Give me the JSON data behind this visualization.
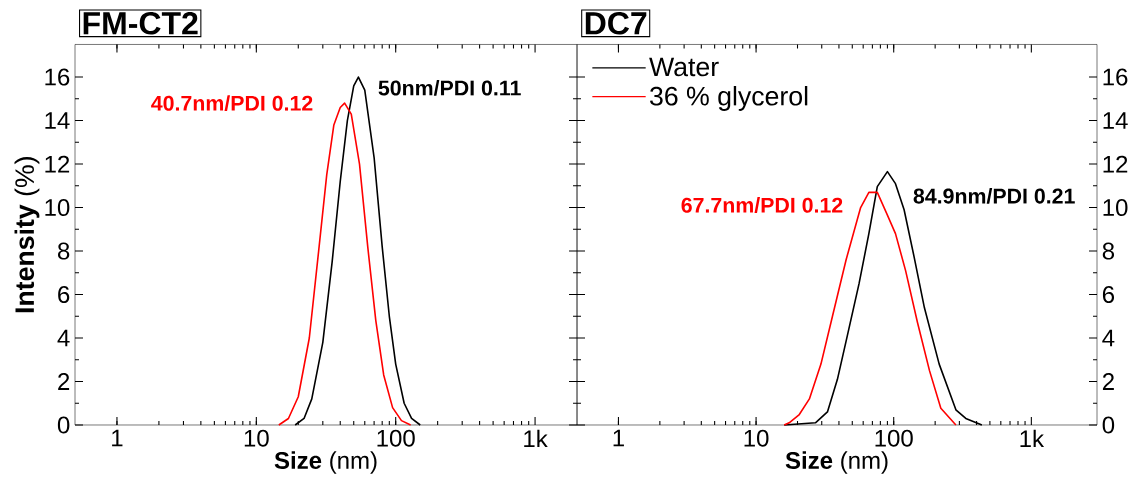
{
  "chart_data": [
    {
      "type": "line",
      "title": "FM-CT2",
      "xlabel": "**Size** (nm)",
      "ylabel": "**Intensity** (%)",
      "log": "x",
      "marker": "none",
      "xlim": [
        0.5,
        2000
      ],
      "ylim": [
        0,
        17.5
      ],
      "xticks": [
        1,
        10,
        100,
        {
          "value": 1000,
          "label": "1k"
        }
      ],
      "yticks": [
        0,
        2,
        4,
        6,
        8,
        10,
        12,
        14,
        16
      ],
      "series": [
        {
          "color": "#000000",
          "x": [
            19,
            22,
            25,
            30,
            35,
            40,
            45,
            50,
            54,
            60,
            70,
            80,
            90,
            100,
            115,
            130,
            150
          ],
          "values": [
            0,
            0.3,
            1.2,
            3.8,
            7.5,
            11.2,
            14.0,
            15.6,
            16.0,
            15.4,
            12.3,
            8.2,
            5.0,
            2.8,
            1.0,
            0.3,
            0
          ]
        },
        {
          "color": "#ff0000",
          "x": [
            14.5,
            17,
            20,
            24,
            28,
            32,
            36,
            40,
            43,
            48,
            55,
            63,
            72,
            82,
            95,
            110,
            128
          ],
          "values": [
            0,
            0.3,
            1.3,
            4.0,
            8.0,
            11.5,
            13.8,
            14.6,
            14.8,
            14.3,
            12.0,
            8.2,
            4.8,
            2.3,
            0.8,
            0.2,
            0
          ]
        }
      ],
      "annotations": [
        "50nm/PDI 0.11",
        "40.7nm/PDI 0.12"
      ]
    },
    {
      "type": "line",
      "title": "DC7",
      "xlabel": "**Size** (nm)",
      "log": "x",
      "marker": "none",
      "legend": "top left",
      "xlim": [
        0.5,
        3000
      ],
      "ylim": [
        0,
        17.5
      ],
      "xticks": [
        1,
        10,
        100,
        {
          "value": 1000,
          "label": "1k"
        }
      ],
      "yticks": [
        0,
        2,
        4,
        6,
        8,
        10,
        12,
        14,
        16
      ],
      "series": [
        {
          "name": "Water",
          "color": "#000000",
          "x": [
            16,
            27,
            33,
            39,
            46,
            56,
            66,
            76,
            90,
            103,
            119,
            141,
            167,
            214,
            283,
            334,
            437
          ],
          "values": [
            0,
            0.1,
            0.6,
            2.1,
            4.1,
            6.5,
            8.8,
            10.96,
            11.65,
            11.1,
            9.9,
            7.7,
            5.4,
            2.8,
            0.7,
            0.3,
            0
          ]
        },
        {
          "name": "36 % glycerol",
          "color": "#ff0000",
          "x": [
            16,
            17.4,
            20.5,
            24.4,
            29.6,
            35.9,
            45.1,
            57.5,
            66,
            76,
            90,
            103,
            122,
            149,
            182,
            220,
            283
          ],
          "values": [
            0,
            0.1,
            0.46,
            1.2,
            2.8,
            5.0,
            7.6,
            10.0,
            10.7,
            10.7,
            9.65,
            8.8,
            7.1,
            4.7,
            2.5,
            0.77,
            0
          ]
        }
      ],
      "annotations": [
        "84.9nm/PDI 0.21",
        "67.7nm/PDI 0.12"
      ]
    }
  ]
}
